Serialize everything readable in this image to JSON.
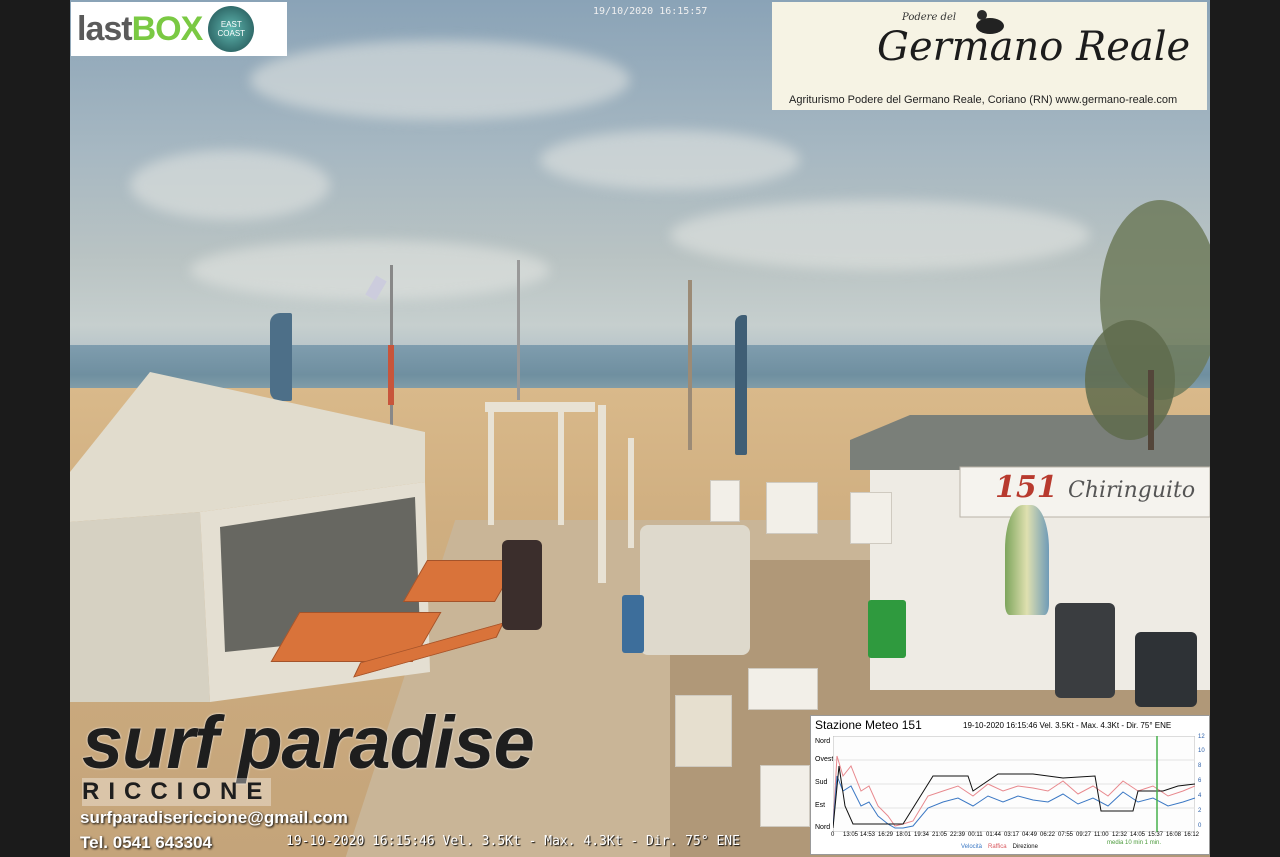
{
  "webcam": {
    "top_timestamp": "19/10/2020 16:15:57",
    "bottom_status": "19-10-2020 16:15:46 Vel. 3.5Kt - Max. 4.3Kt - Dir. 75° ENE"
  },
  "sponsor_lastbox": {
    "brand_plain": "last",
    "brand_bold": "BOX",
    "badge": "EAST COAST"
  },
  "sponsor_germano": {
    "over_title": "Podere del",
    "title": "Germano Reale",
    "caption": "Agriturismo Podere del Germano Reale, Coriano (RN)  www.germano-reale.com"
  },
  "kiosk_sign": {
    "number": "151",
    "name": "Chiringuito"
  },
  "surf_paradise": {
    "title": "surf paradise",
    "subtitle": "RICCIONE",
    "email": "surfparadisericcione@gmail.com",
    "phone": "Tel. 0541 643304"
  },
  "meteo": {
    "title": "Stazione Meteo 151",
    "info": "19-10-2020 16:15:46 Vel. 3.5Kt - Max. 4.3Kt - Dir. 75° ENE",
    "y_labels": [
      "Nord",
      "Ovest",
      "Sud",
      "Est",
      "Nord"
    ],
    "right_labels": [
      "12",
      "10",
      "8",
      "6",
      "4",
      "2",
      "0"
    ],
    "x_labels": [
      "0",
      "13:05",
      "14:53",
      "16:29",
      "18:01",
      "19:34",
      "21:05",
      "22:39",
      "00:11",
      "01:44",
      "03:17",
      "04:49",
      "06:22",
      "07:55",
      "09:27",
      "11:00",
      "12:32",
      "14:05",
      "15:37",
      "16:08",
      "16:12"
    ],
    "legend": [
      "Velocità",
      "Raffica",
      "Direzione"
    ],
    "footer": "media 10 min   1 min."
  }
}
